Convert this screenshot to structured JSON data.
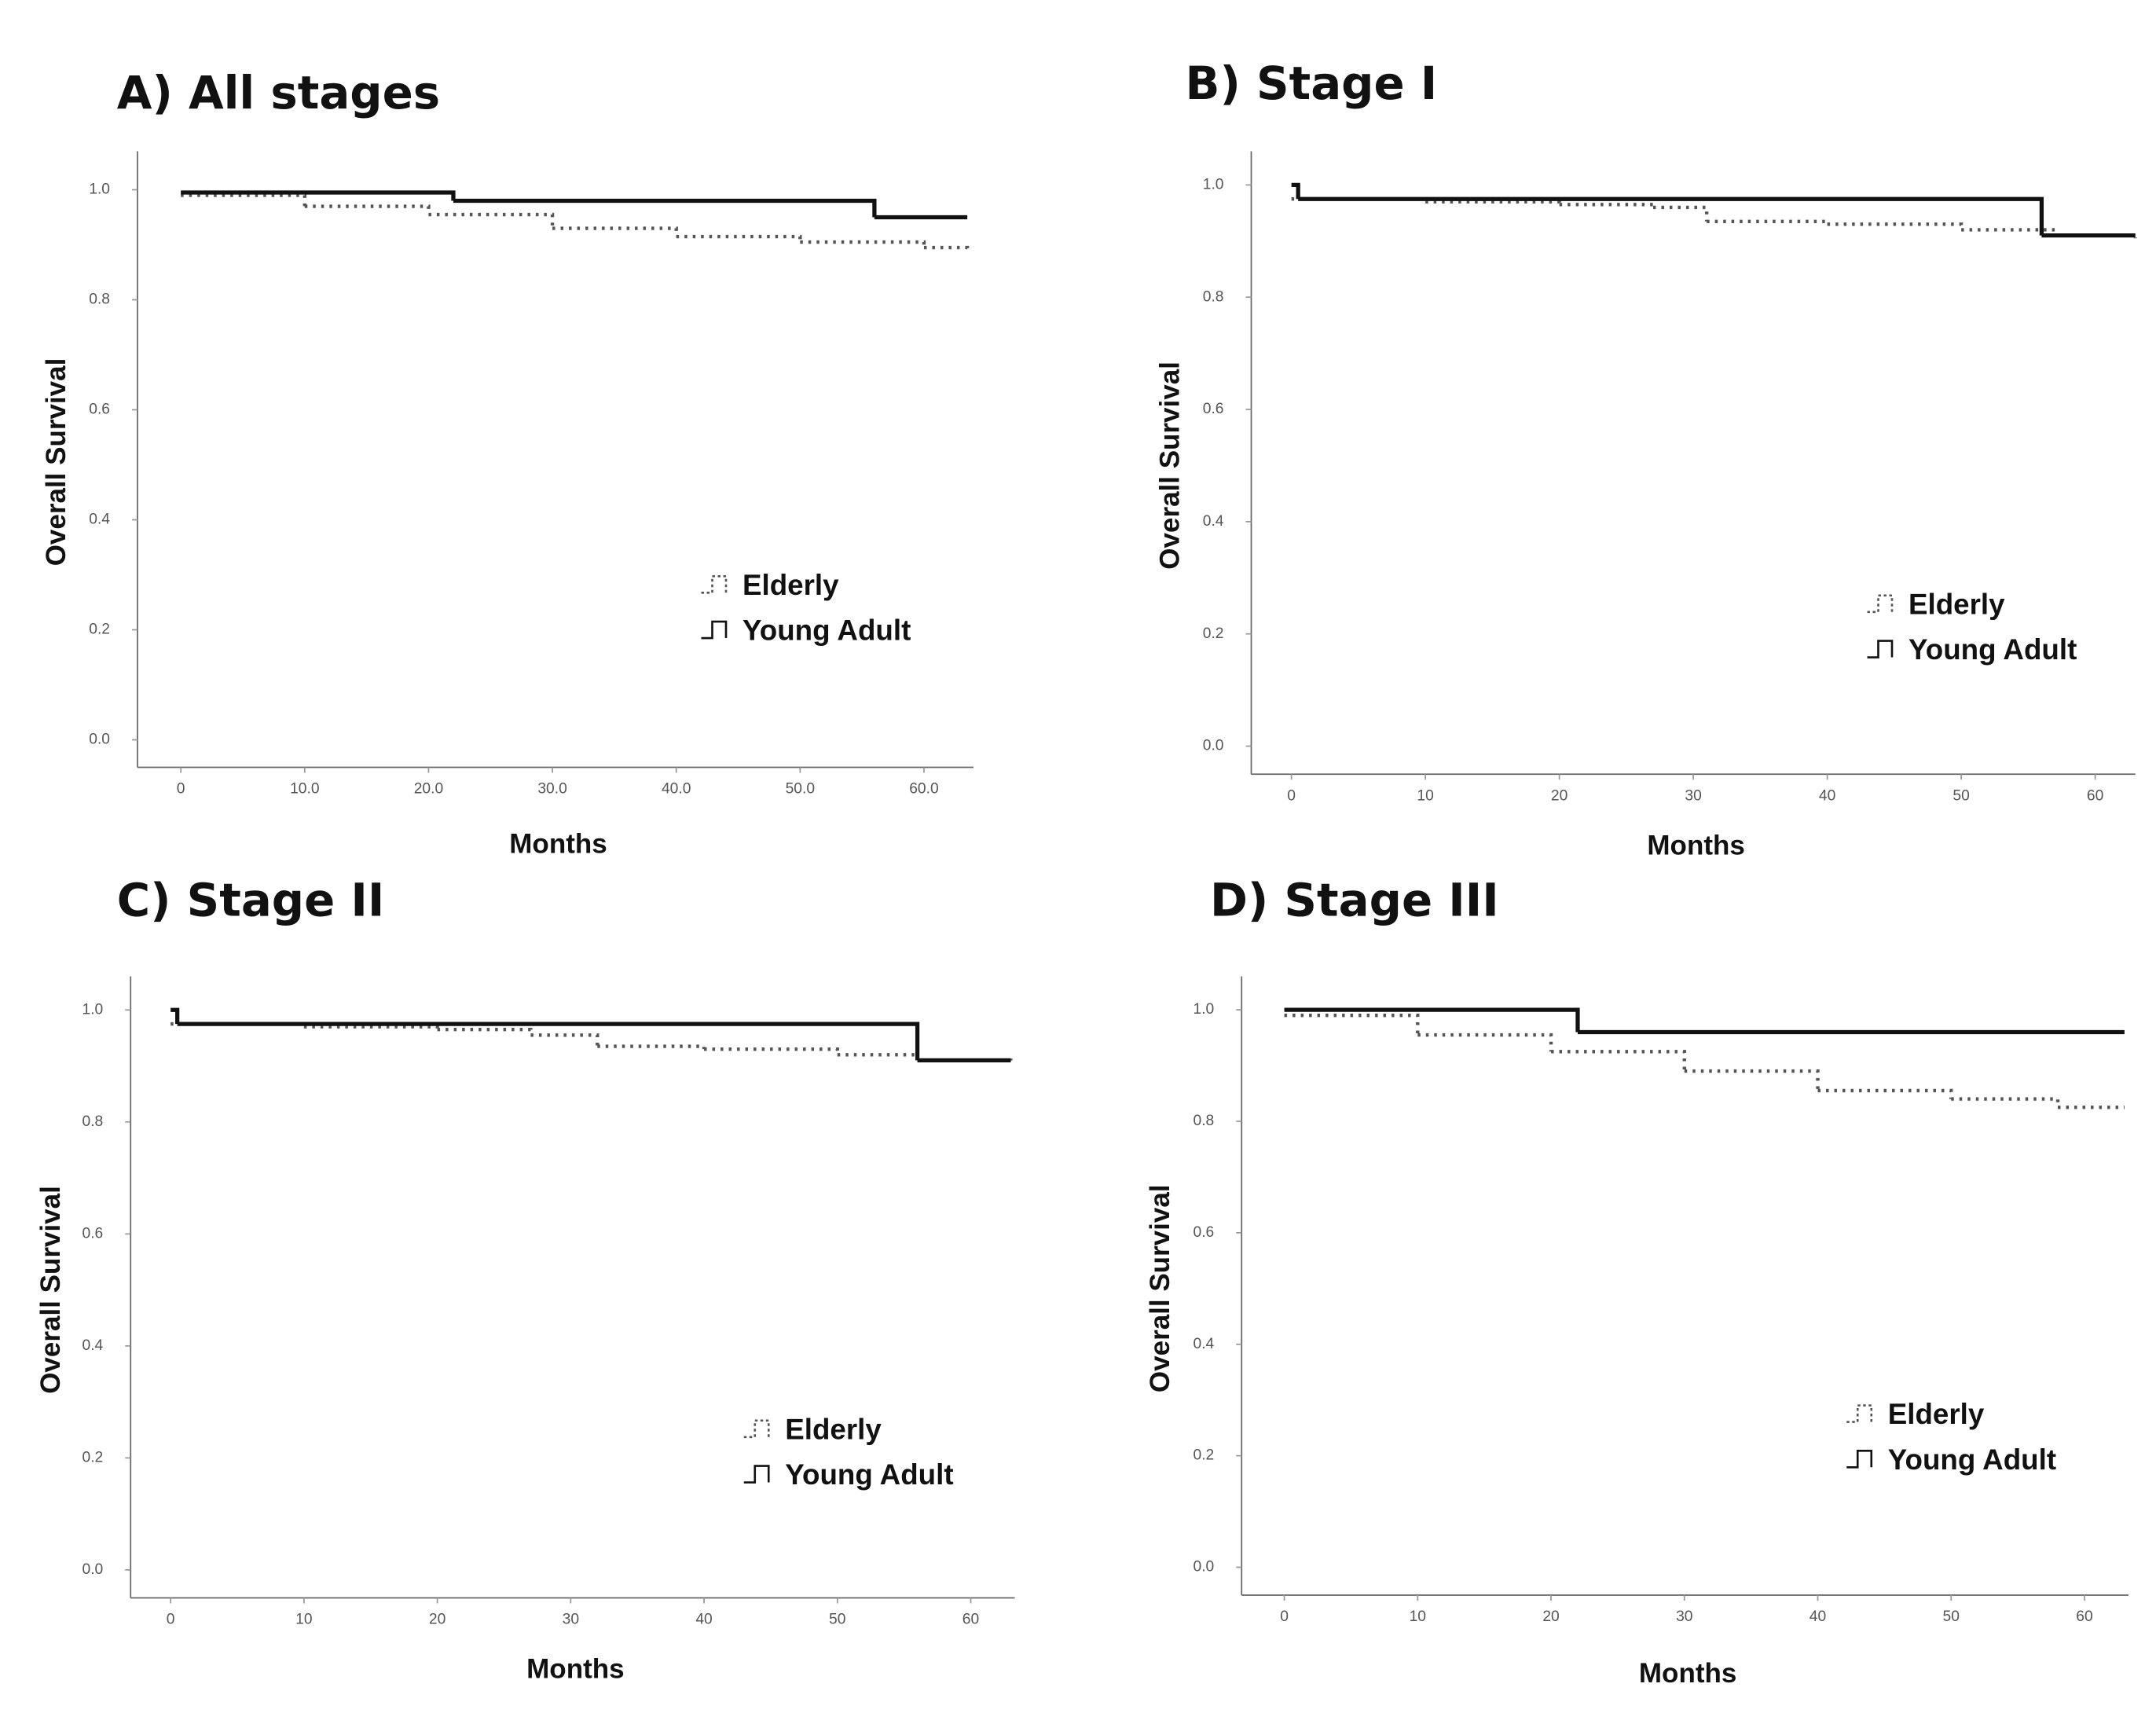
{
  "chart_data": [
    {
      "type": "line",
      "title": "A) All stages",
      "x_label": "Months",
      "y_label": "Overall Survival",
      "xlim": [
        -3.5,
        64
      ],
      "ylim": [
        -0.05,
        1.07
      ],
      "xticks": [
        0,
        {
          "value": 10,
          "label": "10.0"
        },
        {
          "value": 20,
          "label": "20.0"
        },
        {
          "value": 30,
          "label": "30.0"
        },
        {
          "value": 40,
          "label": "40.0"
        },
        {
          "value": 50,
          "label": "50.0"
        },
        {
          "value": 60,
          "label": "60.0"
        }
      ],
      "yticks": [
        {
          "value": 0,
          "label": "0.0"
        },
        0.2,
        0.4,
        0.6,
        0.8,
        {
          "value": 1,
          "label": "1.0"
        }
      ],
      "step": true,
      "series": [
        {
          "name": "Elderly",
          "color": "#555555",
          "line_style": "dotted",
          "x": [
            0,
            10,
            20,
            30,
            40,
            50,
            60,
            63.5
          ],
          "values": [
            0.99,
            0.97,
            0.955,
            0.93,
            0.915,
            0.905,
            0.895,
            0.89
          ]
        },
        {
          "name": "Young Adult",
          "color": "#111111",
          "line_style": "solid",
          "x": [
            0,
            22,
            56,
            63.5
          ],
          "values": [
            0.995,
            0.98,
            0.95,
            0.95
          ]
        }
      ]
    },
    {
      "type": "line",
      "title": "B) Stage I",
      "x_label": "Months",
      "y_label": "Overall Survival",
      "xlim": [
        -3,
        63
      ],
      "ylim": [
        -0.05,
        1.06
      ],
      "xticks": [
        0,
        10,
        20,
        30,
        40,
        50,
        60
      ],
      "yticks": [
        {
          "value": 0,
          "label": "0.0"
        },
        0.2,
        0.4,
        0.6,
        0.8,
        {
          "value": 1,
          "label": "1.0"
        }
      ],
      "step": true,
      "series": [
        {
          "name": "Elderly",
          "color": "#555555",
          "line_style": "dotted",
          "x": [
            0,
            10,
            20,
            27,
            31,
            40,
            50,
            57,
            63
          ],
          "values": [
            0.975,
            0.97,
            0.965,
            0.96,
            0.935,
            0.93,
            0.92,
            0.91,
            0.905
          ]
        },
        {
          "name": "Young Adult",
          "color": "#111111",
          "line_style": "solid",
          "x": [
            0,
            0.5,
            56,
            63
          ],
          "values": [
            1,
            0.975,
            0.91,
            0.91
          ]
        }
      ]
    },
    {
      "type": "line",
      "title": "C) Stage II",
      "x_label": "Months",
      "y_label": "Overall Survival",
      "xlim": [
        -3,
        63.3
      ],
      "ylim": [
        -0.05,
        1.06
      ],
      "xticks": [
        0,
        10,
        20,
        30,
        40,
        50,
        60
      ],
      "yticks": [
        {
          "value": 0,
          "label": "0.0"
        },
        0.2,
        0.4,
        0.6,
        0.8,
        {
          "value": 1,
          "label": "1.0"
        }
      ],
      "step": true,
      "series": [
        {
          "name": "Elderly",
          "color": "#555555",
          "line_style": "dotted",
          "x": [
            0,
            10,
            20,
            27,
            32,
            40,
            50,
            56,
            63
          ],
          "values": [
            0.975,
            0.97,
            0.965,
            0.955,
            0.935,
            0.93,
            0.92,
            0.91,
            0.905
          ]
        },
        {
          "name": "Young Adult",
          "color": "#111111",
          "line_style": "solid",
          "x": [
            0,
            0.5,
            56,
            63
          ],
          "values": [
            1,
            0.975,
            0.91,
            0.91
          ]
        }
      ]
    },
    {
      "type": "line",
      "title": "D) Stage III",
      "x_label": "Months",
      "y_label": "Overall Survival",
      "xlim": [
        -3.2,
        63.3
      ],
      "ylim": [
        -0.05,
        1.06
      ],
      "xticks": [
        0,
        10,
        20,
        30,
        40,
        50,
        60
      ],
      "yticks": [
        {
          "value": 0,
          "label": "0.0"
        },
        0.2,
        0.4,
        0.6,
        0.8,
        {
          "value": 1,
          "label": "1.0"
        }
      ],
      "step": true,
      "series": [
        {
          "name": "Elderly",
          "color": "#555555",
          "line_style": "dotted",
          "x": [
            0,
            10,
            20,
            30,
            40,
            50,
            58,
            63
          ],
          "values": [
            0.99,
            0.955,
            0.925,
            0.89,
            0.855,
            0.84,
            0.825,
            0.825
          ]
        },
        {
          "name": "Young Adult",
          "color": "#111111",
          "line_style": "solid",
          "x": [
            0,
            22,
            63
          ],
          "values": [
            1,
            0.96,
            0.96
          ]
        }
      ]
    }
  ]
}
